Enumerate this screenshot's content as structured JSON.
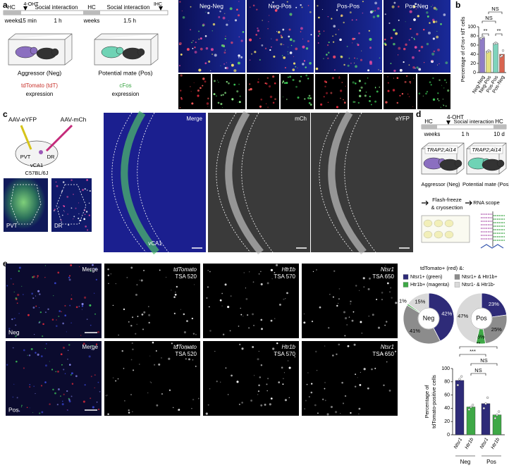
{
  "panel_labels": [
    "a",
    "b",
    "c",
    "d",
    "e"
  ],
  "a": {
    "timeline": [
      "HC",
      "weeks",
      "4-OHT",
      "15 min",
      "Social interaction",
      "1 h",
      "HC",
      "weeks",
      "Social interaction",
      "1.5 h",
      "IHC"
    ],
    "boxes": [
      "Aggressor (Neg)",
      "Potential mate (Pos)"
    ],
    "expression": [
      "tdTomato (tdT)",
      "expression",
      "cFos",
      "expression"
    ],
    "images": [
      "Neg-Neg",
      "Neg-Pos",
      "Pos-Pos",
      "Pos-Neg"
    ]
  },
  "c": {
    "viruses": [
      "AAV-eYFP",
      "AAV-mCh"
    ],
    "regions": [
      "PVT",
      "DR",
      "vCA1"
    ],
    "strain": "C57BL/6J",
    "insets": [
      "PVT",
      "DR"
    ],
    "images": [
      "Merge",
      "mCh",
      "eYFP"
    ],
    "region": "vCA1"
  },
  "d": {
    "timeline": [
      "HC",
      "weeks",
      "4-OHT",
      "Social interaction",
      "1 h",
      "HC",
      "10 d"
    ],
    "genotype": [
      "TRAP2;Ai14",
      "TRAP2;Ai14"
    ],
    "boxes": [
      "Aggressor (Neg)",
      "Potential mate (Pos)"
    ],
    "steps": [
      "Flash-freeze",
      "& cryosection",
      "RNA scope"
    ]
  },
  "e": {
    "panels": [
      {
        "name": "Neg",
        "columns": [
          [
            "Merge"
          ],
          [
            "tdTomato",
            "TSA 520"
          ],
          [
            "Htr1b",
            "TSA 570"
          ],
          [
            "Ntsr1",
            "TSA 650"
          ]
        ]
      },
      {
        "name": "Pos",
        "columns": [
          [
            "Merge"
          ],
          [
            "tdTomato",
            "TSA 520"
          ],
          [
            "Htr1b",
            "TSA 570"
          ],
          [
            "Ntsr1",
            "TSA 650"
          ]
        ]
      }
    ]
  },
  "chart_data": [
    {
      "type": "bar",
      "y_label": "Percentage of cFos+ tdT cells",
      "categories": [
        "Neg-Neg",
        "Neg-Pos",
        "Pos-Pos",
        "Pos-Neg"
      ],
      "values": [
        76,
        47,
        64,
        40
      ],
      "points": [
        [
          74,
          77,
          78
        ],
        [
          45,
          48,
          47
        ],
        [
          63,
          65,
          64
        ],
        [
          35,
          37,
          48
        ]
      ],
      "colors": [
        "#8f7cc6",
        "#e3df80",
        "#7ed3bc",
        "#d9644f"
      ],
      "ylim": [
        0,
        100
      ],
      "yticks": [
        0,
        20,
        40,
        60,
        80,
        100
      ],
      "annotations": [
        "**",
        "NS",
        "NS",
        "**"
      ]
    },
    {
      "type": "pie",
      "title": "tdTomato+ (red) &:",
      "categories": [
        "Ntsr1+ (green)",
        "Ntsr1+ & Htr1b+",
        "Htr1b+ (magenta)",
        "Ntsr1- & Htr1b-"
      ],
      "colors": [
        "#2e2b78",
        "#8c8c8c",
        "#3ea846",
        "#d9d9d9"
      ],
      "series": [
        {
          "name": "Neg",
          "values": [
            42,
            41,
            1,
            15
          ],
          "value_labels": [
            "42%",
            "41%",
            "1%",
            "15%"
          ]
        },
        {
          "name": "Pos",
          "values": [
            23,
            25,
            6,
            47
          ],
          "value_labels": [
            "23%",
            "25%",
            "6%",
            "47%"
          ]
        }
      ]
    },
    {
      "type": "bar",
      "y_label": [
        "Percentage of",
        "tdTomato-positive cells"
      ],
      "categories": [
        "Ntsr1",
        "Htr1b",
        "Ntsr1",
        "Htr1b"
      ],
      "groups": [
        "Neg",
        "Pos"
      ],
      "values": [
        82,
        42,
        47,
        30
      ],
      "points": [
        [
          75,
          84,
          88
        ],
        [
          38,
          42,
          45
        ],
        [
          40,
          47,
          56
        ],
        [
          25,
          30,
          35
        ]
      ],
      "colors": [
        "#2e2b78",
        "#3ea846",
        "#2e2b78",
        "#3ea846"
      ],
      "ylim": [
        0,
        100
      ],
      "yticks": [
        0,
        20,
        40,
        60,
        80,
        100
      ],
      "annotations": [
        "**",
        "***",
        "NS",
        "NS"
      ]
    }
  ]
}
